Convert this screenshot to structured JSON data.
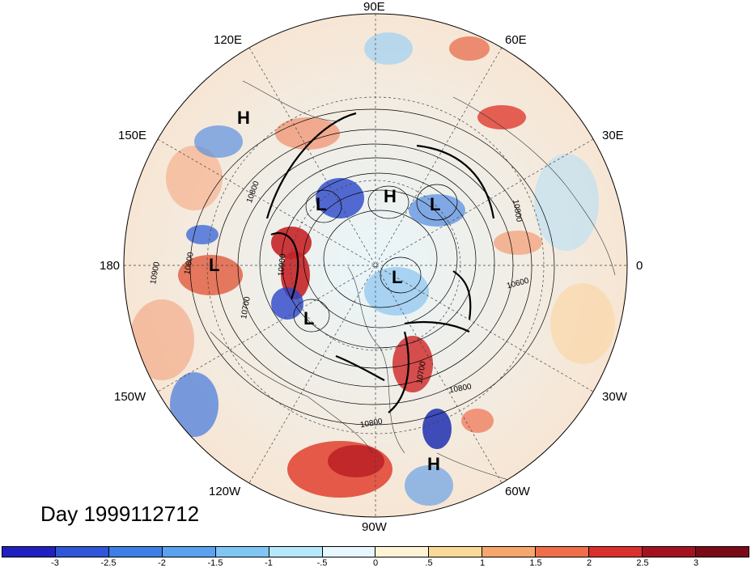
{
  "title": "Day 1999112712",
  "longitude_labels": {
    "lon_90e": "90E",
    "lon_120e": "120E",
    "lon_60e": "60E",
    "lon_150e": "150E",
    "lon_30e": "30E",
    "lon_180": "180",
    "lon_0": "0",
    "lon_150w": "150W",
    "lon_30w": "30W",
    "lon_120w": "120W",
    "lon_60w": "60W",
    "lon_90w": "90W"
  },
  "pressure_centers": [
    {
      "label": "H"
    },
    {
      "label": "L"
    },
    {
      "label": "H"
    },
    {
      "label": "L"
    },
    {
      "label": "L"
    },
    {
      "label": "L"
    },
    {
      "label": "L"
    },
    {
      "label": "H"
    }
  ],
  "contour_labels": [
    "10800",
    "10900",
    "10800",
    "10700",
    "10900",
    "10800",
    "10600",
    "10800",
    "10700",
    "10800"
  ],
  "colorbar": {
    "ticks": [
      "-3",
      "-2.5",
      "-2",
      "-1.5",
      "-1",
      "-.5",
      "0",
      ".5",
      "1",
      "1.5",
      "2",
      "2.5",
      "3"
    ],
    "colors": [
      "#2020c0",
      "#2f55d8",
      "#3d7fe6",
      "#5aa2ef",
      "#80c6f5",
      "#b7e8fb",
      "#e6f7fd",
      "#fdf3d6",
      "#fbd99a",
      "#f6a76b",
      "#ef6e4a",
      "#d9302f",
      "#a5121f",
      "#7a0a16"
    ]
  }
}
